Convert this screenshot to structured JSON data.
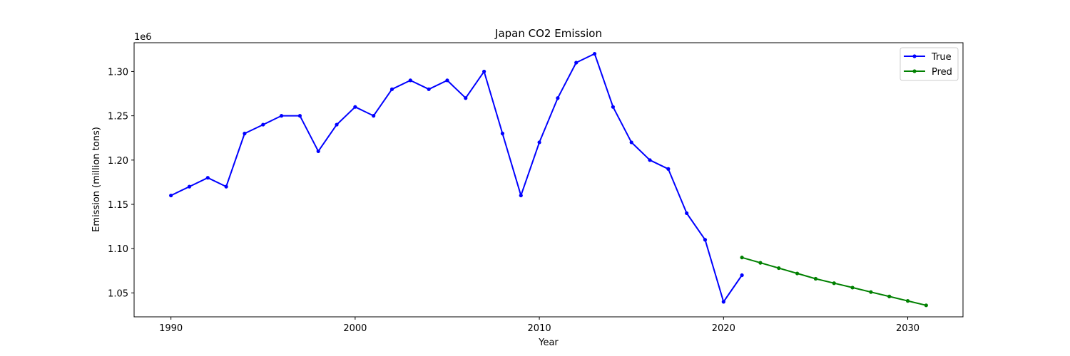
{
  "chart_data": {
    "type": "line",
    "title": "Japan CO2 Emission",
    "xlabel": "Year",
    "ylabel": "Emission (million tons)",
    "y_offset_label": "1e6",
    "xlim": [
      1988,
      2033
    ],
    "ylim": [
      1.023,
      1.3325
    ],
    "x_ticks": [
      1990,
      2000,
      2010,
      2020,
      2030
    ],
    "y_ticks": [
      1.05,
      1.1,
      1.15,
      1.2,
      1.25,
      1.3
    ],
    "y_tick_labels": [
      "1.05",
      "1.10",
      "1.15",
      "1.20",
      "1.25",
      "1.30"
    ],
    "legend": "top-right",
    "grid": false,
    "series": [
      {
        "name": "True",
        "color": "#0000ff",
        "marker": "dot",
        "x": [
          1990,
          1991,
          1992,
          1993,
          1994,
          1995,
          1996,
          1997,
          1998,
          1999,
          2000,
          2001,
          2002,
          2003,
          2004,
          2005,
          2006,
          2007,
          2008,
          2009,
          2010,
          2011,
          2012,
          2013,
          2014,
          2015,
          2016,
          2017,
          2018,
          2019,
          2020,
          2021
        ],
        "y": [
          1.16,
          1.17,
          1.18,
          1.17,
          1.23,
          1.24,
          1.25,
          1.25,
          1.21,
          1.24,
          1.26,
          1.25,
          1.28,
          1.29,
          1.28,
          1.29,
          1.27,
          1.3,
          1.23,
          1.16,
          1.22,
          1.27,
          1.31,
          1.32,
          1.26,
          1.22,
          1.2,
          1.19,
          1.14,
          1.11,
          1.04,
          1.07
        ]
      },
      {
        "name": "Pred",
        "color": "#008000",
        "marker": "dot",
        "x": [
          2021,
          2022,
          2023,
          2024,
          2025,
          2026,
          2027,
          2028,
          2029,
          2030,
          2031
        ],
        "y": [
          1.09,
          1.084,
          1.078,
          1.072,
          1.066,
          1.061,
          1.056,
          1.051,
          1.046,
          1.041,
          1.036
        ]
      }
    ]
  }
}
